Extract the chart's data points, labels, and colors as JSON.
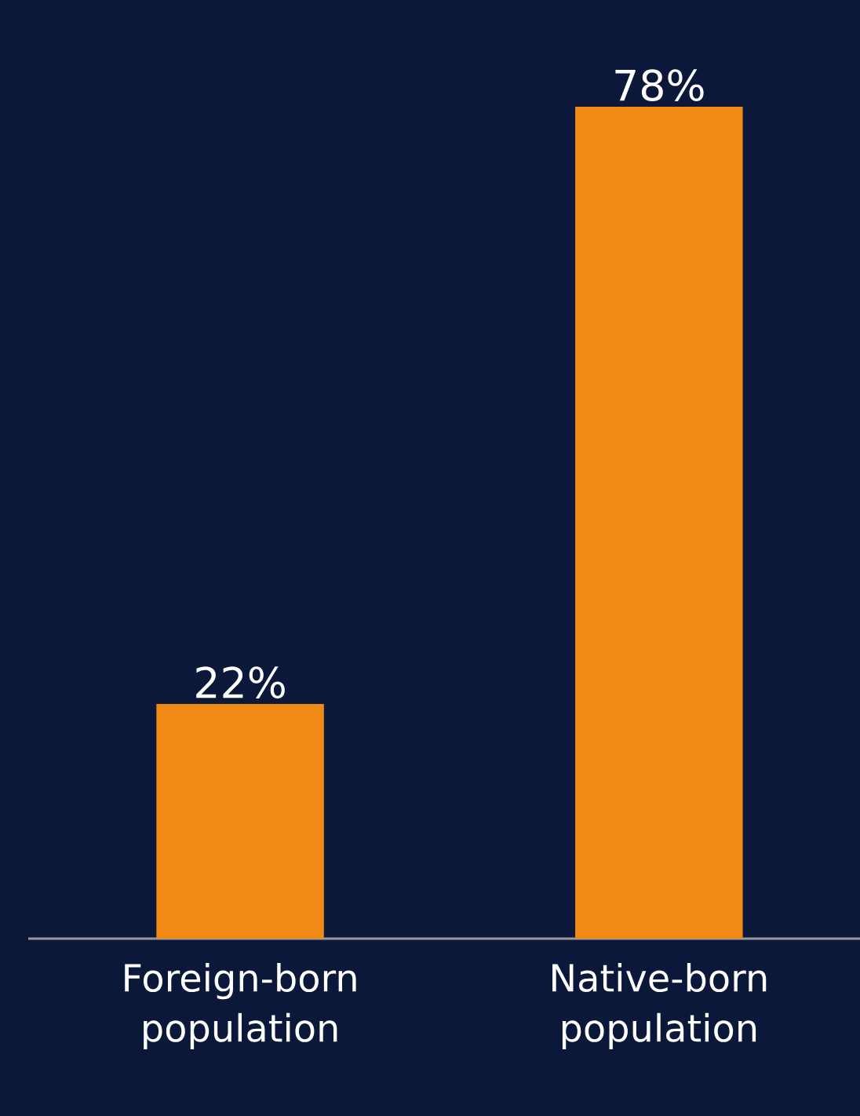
{
  "chart_data": {
    "type": "bar",
    "categories": [
      "Foreign-born population",
      "Native-born population"
    ],
    "values": [
      22,
      78
    ],
    "value_labels": [
      "22%",
      "78%"
    ],
    "color": "#f08a14"
  }
}
